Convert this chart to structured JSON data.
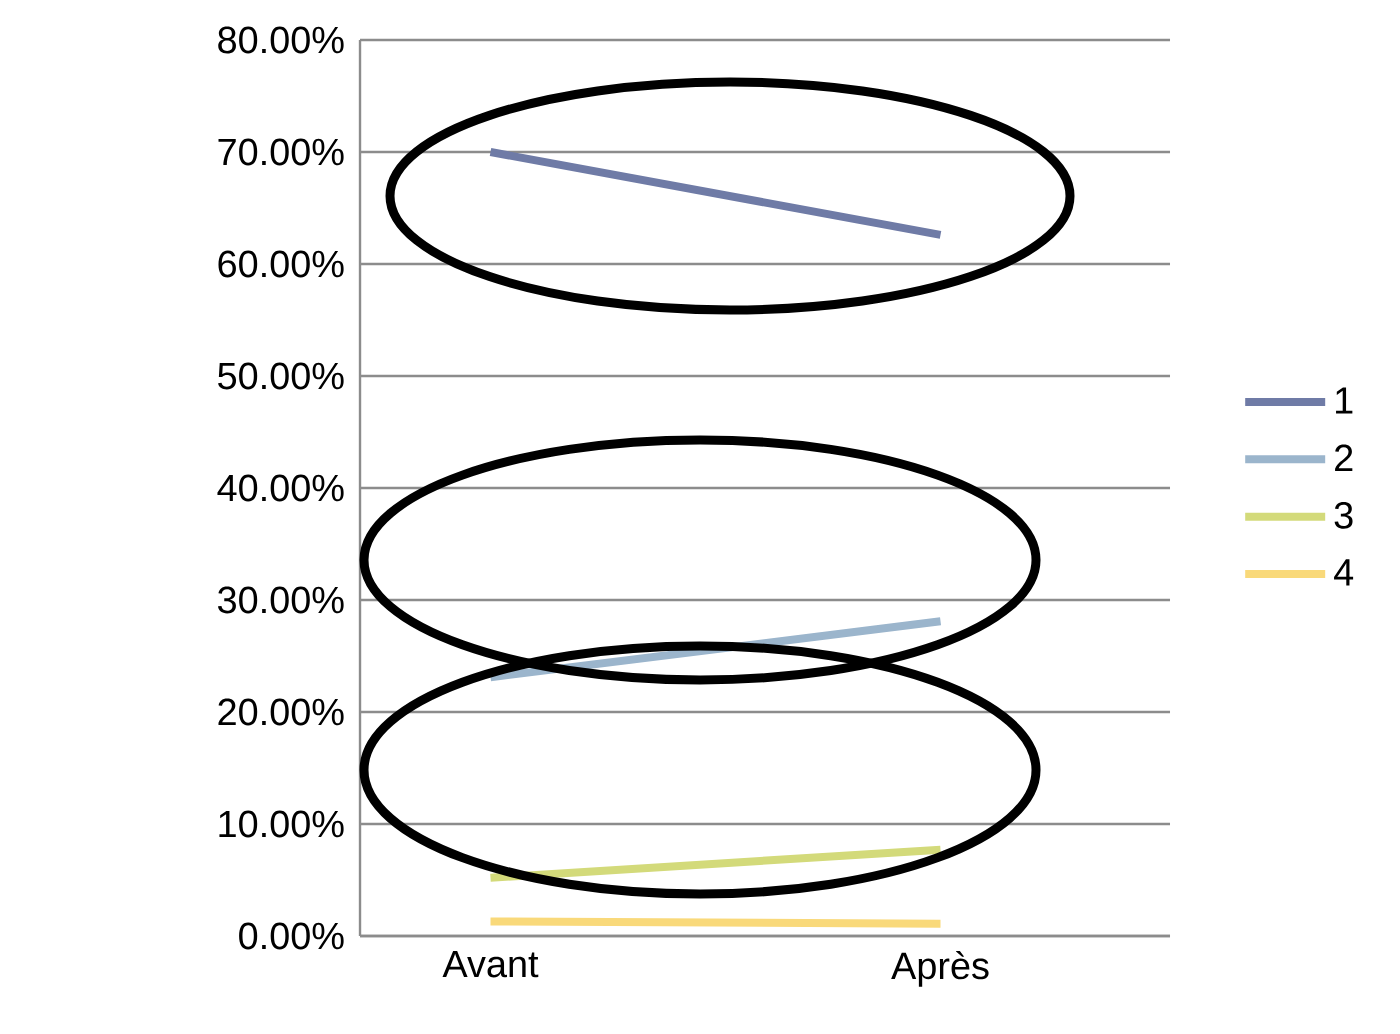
{
  "chart_data": {
    "type": "line",
    "categories": [
      "Avant",
      "Après"
    ],
    "series": [
      {
        "name": "1",
        "color": "#6f7ba6",
        "values": [
          70.0,
          62.6
        ]
      },
      {
        "name": "2",
        "color": "#9bb5cc",
        "values": [
          23.1,
          28.1
        ]
      },
      {
        "name": "3",
        "color": "#d3da7a",
        "values": [
          5.2,
          7.7
        ]
      },
      {
        "name": "4",
        "color": "#f9d97a",
        "values": [
          1.3,
          1.1
        ]
      }
    ],
    "ylim": [
      0,
      80
    ],
    "yticks": [
      {
        "value": 0,
        "label": "0.00%"
      },
      {
        "value": 10,
        "label": "10.00%"
      },
      {
        "value": 20,
        "label": "20.00%"
      },
      {
        "value": 30,
        "label": "30.00%"
      },
      {
        "value": 40,
        "label": "40.00%"
      },
      {
        "value": 50,
        "label": "50.00%"
      },
      {
        "value": 60,
        "label": "60.00%"
      },
      {
        "value": 70,
        "label": "70.00%"
      },
      {
        "value": 80,
        "label": "80.00%"
      }
    ],
    "grid": "y",
    "legend": "right",
    "marker": "none",
    "line_style": "solid"
  }
}
